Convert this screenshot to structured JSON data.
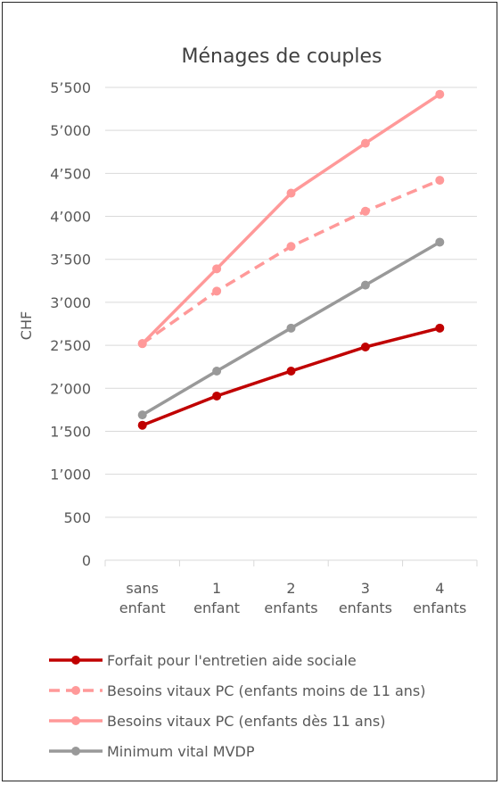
{
  "chart_data": {
    "type": "line",
    "title": "Ménages de couples",
    "xlabel": "",
    "ylabel": "CHF",
    "categories": [
      [
        "sans",
        "enfant"
      ],
      [
        "1",
        "enfant"
      ],
      [
        "2",
        "enfants"
      ],
      [
        "3",
        "enfants"
      ],
      [
        "4",
        "enfants"
      ]
    ],
    "ylim": [
      0,
      5500
    ],
    "yticks": [
      0,
      500,
      1000,
      1500,
      2000,
      2500,
      3000,
      3500,
      4000,
      4500,
      5000,
      5500
    ],
    "ytick_labels": [
      "0",
      "500",
      "1’000",
      "1’500",
      "2’000",
      "2’500",
      "3’000",
      "3’500",
      "4’000",
      "4’500",
      "5’000",
      "5’500"
    ],
    "grid": true,
    "legend_position": "bottom",
    "series": [
      {
        "name": "Forfait pour l'entretien aide sociale",
        "values": [
          1570,
          1910,
          2200,
          2480,
          2700
        ],
        "color": "#c00000",
        "dash": false
      },
      {
        "name": "Besoins vitaux PC (enfants moins de 11 ans)",
        "values": [
          2520,
          3130,
          3650,
          4060,
          4420
        ],
        "color": "#ff9999",
        "dash": true
      },
      {
        "name": "Besoins vitaux PC (enfants dès 11 ans)",
        "values": [
          2520,
          3390,
          4270,
          4850,
          5420
        ],
        "color": "#ff9999",
        "dash": false
      },
      {
        "name": "Minimum vital MVDP",
        "values": [
          1690,
          2200,
          2700,
          3200,
          3700
        ],
        "color": "#999999",
        "dash": false
      }
    ]
  }
}
